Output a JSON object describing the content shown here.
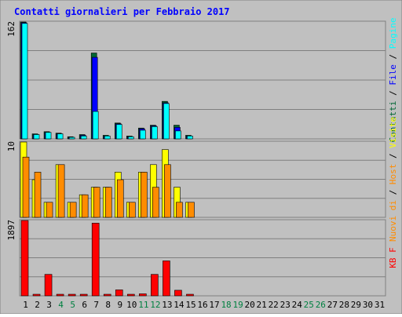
{
  "title": "Contatti giornalieri per Febbraio 2017",
  "colors": {
    "background": "#c0c0c0",
    "frame": "#7f7f7f",
    "grid": "#7f7f7f",
    "title": "#0000ff",
    "visits": "#ffff00",
    "hosts": "#ff8c00",
    "pages": "#00ffff",
    "files": "#0000ff",
    "contacts": "#006633",
    "kb": "#ff0000",
    "tick_normal": "#000000",
    "tick_weekend": "#008040"
  },
  "chart_data": [
    {
      "type": "bar",
      "panel": "top",
      "max_label": "162",
      "ylim": [
        0,
        162
      ],
      "legend": [
        {
          "text": "Pagine",
          "color": "#00ffff"
        },
        {
          "text": "File",
          "color": "#0000ff"
        },
        {
          "text": "Contatti",
          "color": "#006633"
        }
      ],
      "legend_separator": "/",
      "categories": [
        "1",
        "2",
        "3",
        "4",
        "5",
        "6",
        "7",
        "8",
        "9",
        "10",
        "11",
        "12",
        "13",
        "14",
        "15",
        "16",
        "17",
        "18",
        "19",
        "20",
        "21",
        "22",
        "23",
        "24",
        "25",
        "26",
        "27",
        "28",
        "29",
        "30",
        "31"
      ],
      "series": [
        {
          "name": "Contatti",
          "values": [
            162,
            7,
            10,
            8,
            3,
            6,
            119,
            5,
            22,
            4,
            15,
            19,
            52,
            19,
            5,
            0,
            0,
            0,
            0,
            0,
            0,
            0,
            0,
            0,
            0,
            0,
            0,
            0,
            0,
            0,
            0
          ]
        },
        {
          "name": "File",
          "values": [
            161,
            6,
            9,
            7,
            2,
            5,
            113,
            4,
            21,
            3,
            14,
            18,
            50,
            16,
            4,
            0,
            0,
            0,
            0,
            0,
            0,
            0,
            0,
            0,
            0,
            0,
            0,
            0,
            0,
            0,
            0
          ]
        },
        {
          "name": "Pagine",
          "values": [
            160,
            6,
            9,
            7,
            2,
            4,
            38,
            4,
            20,
            3,
            12,
            17,
            49,
            11,
            4,
            0,
            0,
            0,
            0,
            0,
            0,
            0,
            0,
            0,
            0,
            0,
            0,
            0,
            0,
            0,
            0
          ]
        }
      ]
    },
    {
      "type": "bar",
      "panel": "middle",
      "max_label": "10",
      "ylim": [
        0,
        10
      ],
      "legend": [
        {
          "text": "Visite",
          "color": "#ffff00"
        },
        {
          "text": "Host",
          "color": "#ff8c00"
        },
        {
          "text": "Nuovi di",
          "color": "#ff8c00"
        }
      ],
      "legend_separator": "/",
      "categories": [
        "1",
        "2",
        "3",
        "4",
        "5",
        "6",
        "7",
        "8",
        "9",
        "10",
        "11",
        "12",
        "13",
        "14",
        "15",
        "16",
        "17",
        "18",
        "19",
        "20",
        "21",
        "22",
        "23",
        "24",
        "25",
        "26",
        "27",
        "28",
        "29",
        "30",
        "31"
      ],
      "series": [
        {
          "name": "Visite",
          "values": [
            10,
            5,
            2,
            7,
            2,
            3,
            4,
            4,
            6,
            2,
            6,
            7,
            9,
            4,
            2,
            0,
            0,
            0,
            0,
            0,
            0,
            0,
            0,
            0,
            0,
            0,
            0,
            0,
            0,
            0,
            0
          ]
        },
        {
          "name": "Host",
          "values": [
            8,
            6,
            2,
            7,
            2,
            3,
            4,
            4,
            5,
            2,
            6,
            4,
            7,
            2,
            2,
            0,
            0,
            0,
            0,
            0,
            0,
            0,
            0,
            0,
            0,
            0,
            0,
            0,
            0,
            0,
            0
          ]
        }
      ]
    },
    {
      "type": "bar",
      "panel": "bottom",
      "max_label": "1897",
      "ylim": [
        0,
        1897
      ],
      "legend": [
        {
          "text": "KB F",
          "color": "#ff0000"
        }
      ],
      "categories": [
        "1",
        "2",
        "3",
        "4",
        "5",
        "6",
        "7",
        "8",
        "9",
        "10",
        "11",
        "12",
        "13",
        "14",
        "15",
        "16",
        "17",
        "18",
        "19",
        "20",
        "21",
        "22",
        "23",
        "24",
        "25",
        "26",
        "27",
        "28",
        "29",
        "30",
        "31"
      ],
      "series": [
        {
          "name": "KB F",
          "values": [
            1897,
            20,
            540,
            20,
            20,
            20,
            1830,
            20,
            150,
            20,
            50,
            540,
            880,
            140,
            20,
            0,
            0,
            0,
            0,
            0,
            0,
            0,
            0,
            0,
            0,
            0,
            0,
            0,
            0,
            0,
            0
          ]
        }
      ]
    }
  ],
  "x_ticks": [
    {
      "label": "1",
      "weekend": false
    },
    {
      "label": "2",
      "weekend": false
    },
    {
      "label": "3",
      "weekend": false
    },
    {
      "label": "4",
      "weekend": true
    },
    {
      "label": "5",
      "weekend": true
    },
    {
      "label": "6",
      "weekend": false
    },
    {
      "label": "7",
      "weekend": false
    },
    {
      "label": "8",
      "weekend": false
    },
    {
      "label": "9",
      "weekend": false
    },
    {
      "label": "10",
      "weekend": false
    },
    {
      "label": "11",
      "weekend": true
    },
    {
      "label": "12",
      "weekend": true
    },
    {
      "label": "13",
      "weekend": false
    },
    {
      "label": "14",
      "weekend": false
    },
    {
      "label": "15",
      "weekend": false
    },
    {
      "label": "16",
      "weekend": false
    },
    {
      "label": "17",
      "weekend": false
    },
    {
      "label": "18",
      "weekend": true
    },
    {
      "label": "19",
      "weekend": true
    },
    {
      "label": "20",
      "weekend": false
    },
    {
      "label": "21",
      "weekend": false
    },
    {
      "label": "22",
      "weekend": false
    },
    {
      "label": "23",
      "weekend": false
    },
    {
      "label": "24",
      "weekend": false
    },
    {
      "label": "25",
      "weekend": true
    },
    {
      "label": "26",
      "weekend": true
    },
    {
      "label": "27",
      "weekend": false
    },
    {
      "label": "28",
      "weekend": false
    },
    {
      "label": "29",
      "weekend": false
    },
    {
      "label": "30",
      "weekend": false
    },
    {
      "label": "31",
      "weekend": false
    }
  ]
}
